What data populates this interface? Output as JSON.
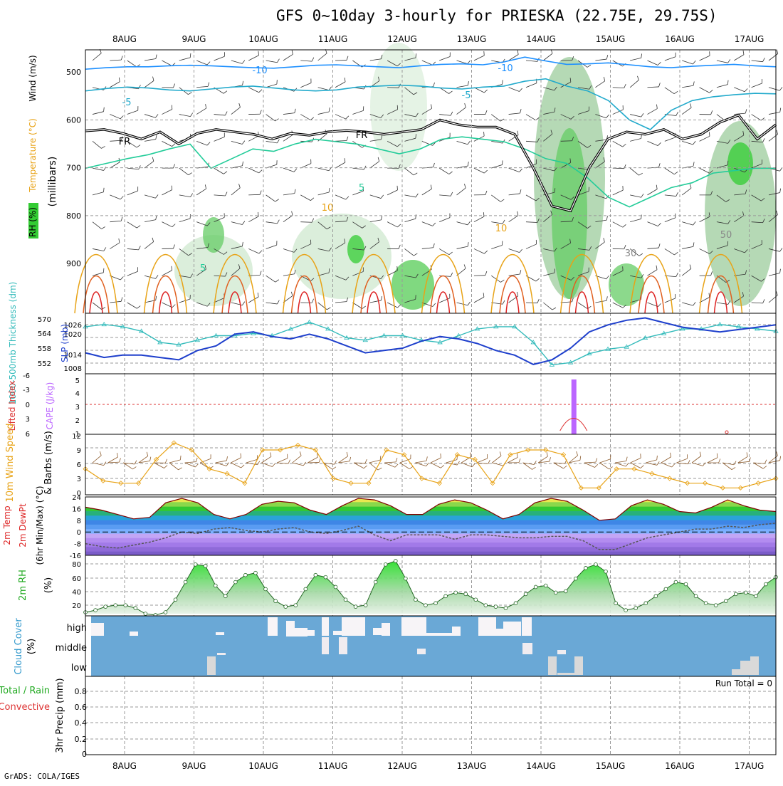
{
  "title": "GFS 0~10day 3-hourly for PRIESKA (22.75E, 29.75S)",
  "credit": "GrADS: COLA/IGES",
  "run_total_label": "Run Total = 0",
  "colors": {
    "rh_green": "#33cc33",
    "temp_orange": "#e8a317",
    "temp_red": "#dd2222",
    "wind_blue": "#1e90ff",
    "slp_blue": "#1e3fcc",
    "thickness_cyan": "#33bbbb",
    "cape_purple": "#bb66ff",
    "cloud_blue": "#6aa8d6",
    "rh2m_green": "#22dd22"
  },
  "chart_data": [
    {
      "type": "heatmap",
      "name": "pressure-cross-section",
      "ylabel": "(millibars)",
      "side_labels": [
        "RH (%)",
        "Temperature (°C)",
        "Wind (m/s)"
      ],
      "y_ticks": [
        "500",
        "600",
        "700",
        "800",
        "900"
      ],
      "ylim": [
        1000,
        450
      ],
      "x_days": [
        "8AUG",
        "9AUG",
        "10AUG",
        "11AUG",
        "12AUG",
        "13AUG",
        "14AUG",
        "15AUG",
        "16AUG",
        "17AUG"
      ],
      "contour_labels": [
        "-10",
        "-10",
        "-5",
        "-5",
        "FR",
        "FR",
        "5",
        "5",
        "10",
        "10",
        "50",
        "30"
      ],
      "freezing_level_mb": [
        623,
        620,
        628,
        640,
        625,
        650,
        628,
        620,
        625,
        630,
        640,
        628,
        632,
        625,
        622,
        625,
        630,
        625,
        620,
        600,
        610,
        615,
        615,
        630,
        700,
        780,
        790,
        700,
        640,
        625,
        630,
        620,
        640,
        630,
        605,
        590,
        640,
        610
      ]
    },
    {
      "type": "line",
      "name": "slp-thickness",
      "ylabels": [
        "1000-500mb Thickness (dm)",
        "SLP (mb)"
      ],
      "y_ticks_left": [
        "570",
        "564",
        "558",
        "552"
      ],
      "y_ticks_right": [
        "1026",
        "1020",
        "1014",
        "1008"
      ],
      "series": [
        {
          "name": "SLP",
          "values": [
            1013,
            1011,
            1012,
            1012,
            1011,
            1010,
            1014,
            1016,
            1021,
            1022,
            1020,
            1019,
            1021,
            1019,
            1016,
            1013,
            1014,
            1015,
            1018,
            1020,
            1019,
            1017,
            1014,
            1012,
            1008,
            1010,
            1015,
            1022,
            1025,
            1027,
            1028,
            1026,
            1024,
            1023,
            1022,
            1023,
            1024,
            1025
          ]
        },
        {
          "name": "Thickness",
          "values": [
            567,
            568,
            567,
            565,
            560,
            559,
            561,
            563,
            563,
            564,
            563,
            566,
            569,
            566,
            562,
            561,
            563,
            563,
            561,
            560,
            563,
            566,
            567,
            567,
            560,
            550,
            551,
            555,
            557,
            558,
            562,
            564,
            566,
            566,
            568,
            567,
            566,
            565
          ]
        }
      ]
    },
    {
      "type": "bar",
      "name": "cape-lifted-index",
      "ylabels": [
        "Lifted Index",
        "CAPE (J/kg)"
      ],
      "y_ticks_left": [
        "-6",
        "-3",
        "0",
        "3",
        "6"
      ],
      "y_ticks_right": [
        "5",
        "4",
        "3",
        "2",
        "1"
      ],
      "cape_bar_day": 6.5,
      "li_bump_day": 6.5
    },
    {
      "type": "line",
      "name": "wind-10m",
      "ylabels": [
        "10m Wind Speed",
        "& Barbs (m/s)"
      ],
      "y_ticks": [
        "12",
        "9",
        "6",
        "3",
        "0"
      ],
      "ylim": [
        0,
        12
      ],
      "series": [
        {
          "name": "Speed",
          "values": [
            5,
            2.5,
            2,
            2,
            7,
            10.5,
            9,
            5,
            4,
            2,
            9,
            9,
            10,
            9,
            3,
            2,
            2,
            9,
            8,
            3,
            2,
            8,
            7,
            2,
            8,
            9,
            9,
            8,
            1,
            1,
            5,
            5,
            4,
            3,
            2,
            2,
            1,
            1,
            2,
            3
          ]
        }
      ]
    },
    {
      "type": "area",
      "name": "temp-dewpoint-2m",
      "ylabels": [
        "2m Temp",
        "2m DewPt",
        "(6hr Min/Max) (°C)"
      ],
      "y_ticks": [
        "24",
        "16",
        "8",
        "0",
        "-8",
        "-16"
      ],
      "ylim": [
        -16,
        24
      ],
      "series": [
        {
          "name": "2m Temp",
          "values": [
            17,
            15,
            12,
            9,
            10,
            20,
            23,
            20,
            12,
            9,
            12,
            19,
            21,
            20,
            15,
            12,
            18,
            23,
            22,
            18,
            12,
            12,
            19,
            22,
            20,
            15,
            9,
            12,
            20,
            23,
            21,
            15,
            8,
            9,
            18,
            22,
            19,
            14,
            13,
            17,
            22,
            18,
            15,
            14
          ]
        },
        {
          "name": "2m DewPt",
          "values": [
            -8,
            -10,
            -11,
            -9,
            -7,
            -4,
            0,
            -1,
            2,
            3,
            1,
            0,
            2,
            3,
            0,
            -1,
            1,
            4,
            -2,
            -6,
            -2,
            -2,
            -2,
            -5,
            -2,
            -2,
            -3,
            -4,
            -4,
            -3,
            -3,
            -6,
            -12,
            -12,
            -8,
            -4,
            -2,
            0,
            2,
            2,
            4,
            3,
            5,
            6
          ]
        }
      ]
    },
    {
      "type": "area",
      "name": "rh-2m",
      "ylabels": [
        "2m RH",
        "(%)"
      ],
      "y_ticks": [
        "80",
        "60",
        "40",
        "20"
      ],
      "ylim": [
        10,
        90
      ],
      "series": [
        {
          "name": "2m RH",
          "values": [
            12,
            15,
            20,
            22,
            22,
            18,
            10,
            8,
            12,
            30,
            55,
            80,
            78,
            50,
            35,
            55,
            65,
            68,
            45,
            28,
            20,
            22,
            45,
            65,
            62,
            48,
            30,
            20,
            22,
            55,
            80,
            85,
            60,
            30,
            22,
            25,
            35,
            40,
            38,
            30,
            22,
            20,
            18,
            25,
            38,
            48,
            50,
            40,
            42,
            60,
            75,
            80,
            70,
            25,
            15,
            18,
            25,
            35,
            45,
            55,
            52,
            35,
            25,
            22,
            28,
            38,
            40,
            35,
            52,
            62
          ]
        }
      ]
    },
    {
      "type": "bar",
      "name": "cloud-cover",
      "ylabels": [
        "Cloud Cover",
        "(%)"
      ],
      "levels": [
        "high",
        "middle",
        "low"
      ]
    },
    {
      "type": "line",
      "name": "precip-3hr",
      "ylabels": [
        "Total / Rain",
        "Convective",
        "3hr Precip (mm)"
      ],
      "y_ticks": [
        "0.8",
        "0.6",
        "0.4",
        "0.2",
        "0"
      ],
      "ylim": [
        0,
        0.9
      ],
      "values": [
        0,
        0,
        0,
        0,
        0,
        0,
        0,
        0,
        0,
        0
      ]
    }
  ]
}
